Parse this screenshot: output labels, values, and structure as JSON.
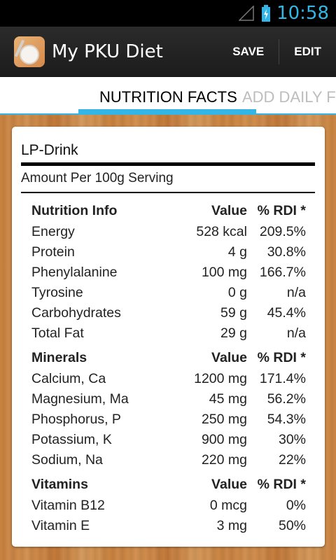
{
  "status_bar": {
    "time": "10:58",
    "signal_icon": "signal-icon",
    "battery_icon": "battery-charging-icon",
    "accent": "#33b5e5"
  },
  "action_bar": {
    "title": "My PKU Diet",
    "save_label": "SAVE",
    "edit_label": "EDIT"
  },
  "tabs": {
    "active_label": "NUTRITION FACTS",
    "next_label": "ADD DAILY F"
  },
  "product": {
    "name": "LP-Drink",
    "serving": "Amount Per 100g Serving"
  },
  "sections": [
    {
      "title": "Nutrition Info",
      "value_header": "Value",
      "rdi_header": "% RDI *",
      "rows": [
        {
          "name": "Energy",
          "value": "528 kcal",
          "rdi": "209.5%"
        },
        {
          "name": "Protein",
          "value": "4 g",
          "rdi": "30.8%"
        },
        {
          "name": "Phenylalanine",
          "value": "100 mg",
          "rdi": "166.7%"
        },
        {
          "name": "Tyrosine",
          "value": "0 g",
          "rdi": "n/a"
        },
        {
          "name": "Carbohydrates",
          "value": "59 g",
          "rdi": "45.4%"
        },
        {
          "name": "Total Fat",
          "value": "29 g",
          "rdi": "n/a"
        }
      ]
    },
    {
      "title": "Minerals",
      "value_header": "Value",
      "rdi_header": "% RDI *",
      "rows": [
        {
          "name": "Calcium, Ca",
          "value": "1200 mg",
          "rdi": "171.4%"
        },
        {
          "name": "Magnesium, Ma",
          "value": "45 mg",
          "rdi": "56.2%"
        },
        {
          "name": "Phosphorus, P",
          "value": "250 mg",
          "rdi": "54.3%"
        },
        {
          "name": "Potassium, K",
          "value": "900 mg",
          "rdi": "30%"
        },
        {
          "name": "Sodium, Na",
          "value": "220 mg",
          "rdi": "22%"
        }
      ]
    },
    {
      "title": "Vitamins",
      "value_header": "Value",
      "rdi_header": "% RDI *",
      "rows": [
        {
          "name": "Vitamin B12",
          "value": "0 mcg",
          "rdi": "0%"
        },
        {
          "name": "Vitamin E",
          "value": "3 mg",
          "rdi": "50%"
        }
      ]
    }
  ]
}
